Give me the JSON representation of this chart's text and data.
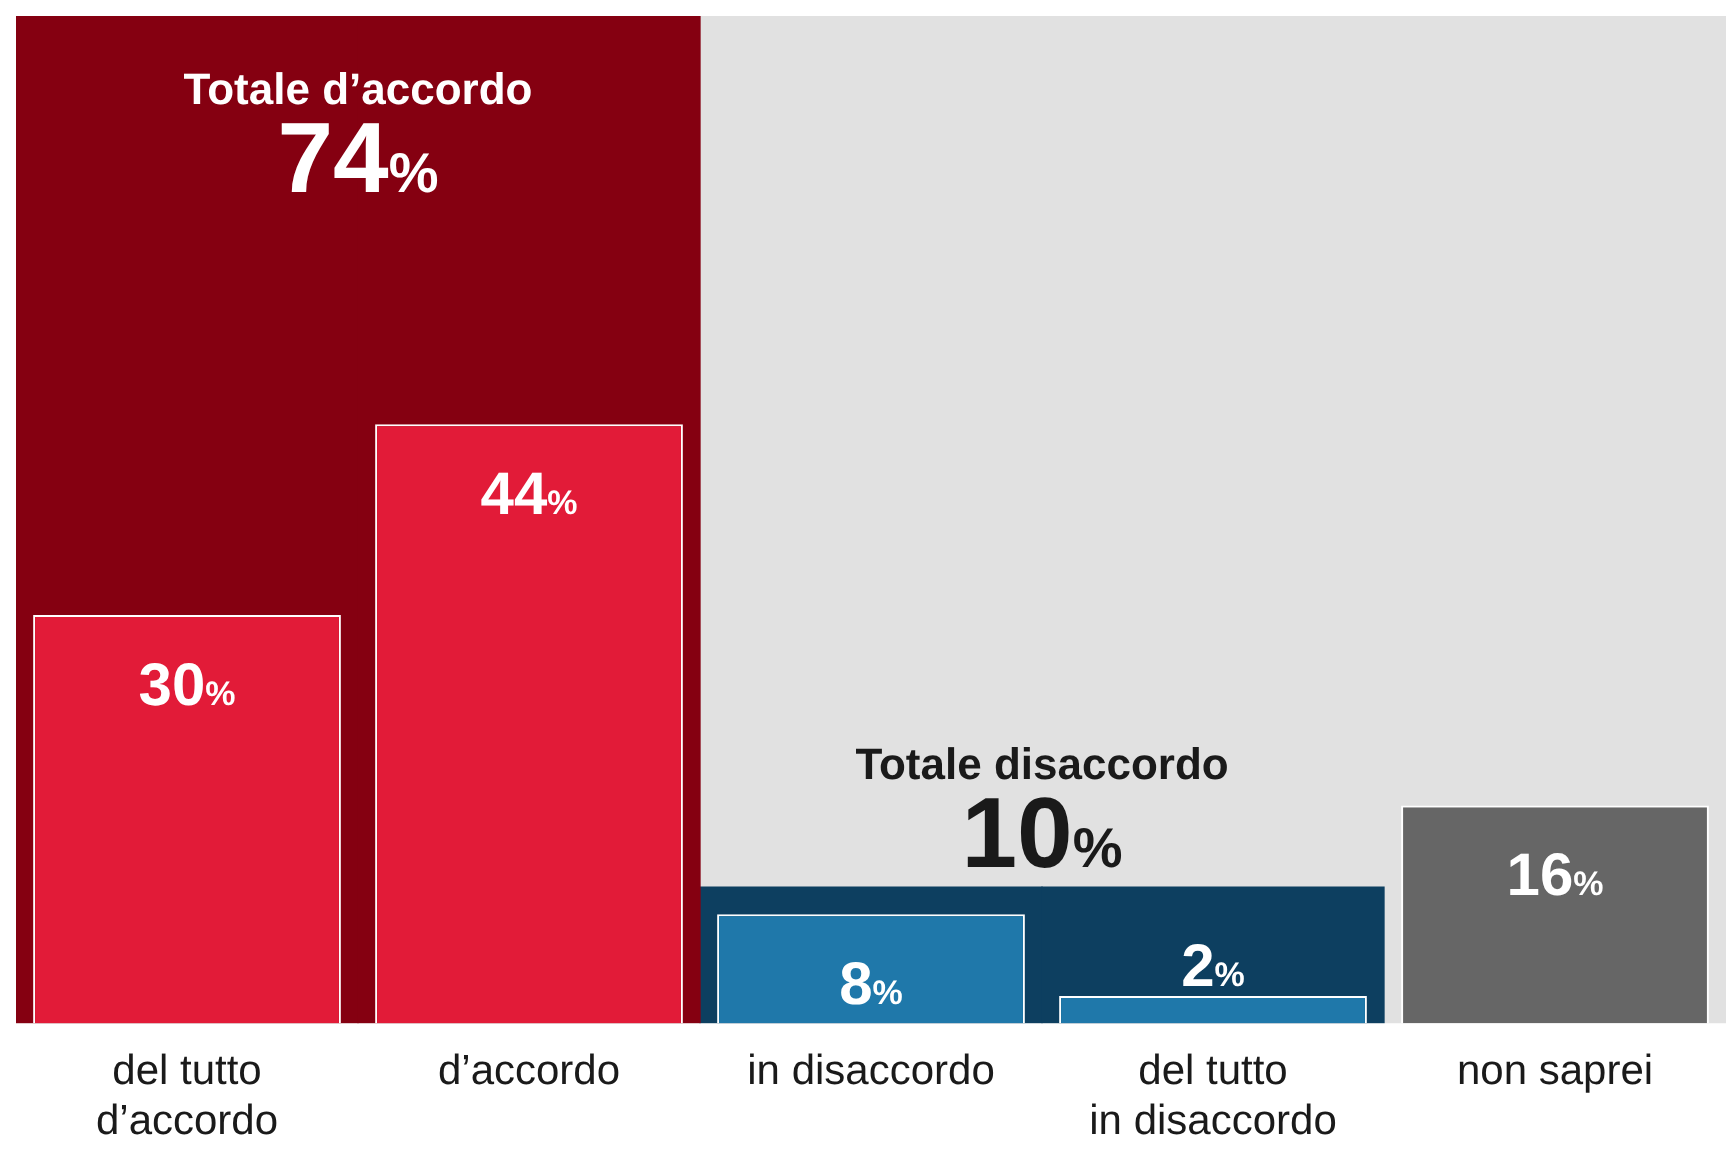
{
  "chart_data": {
    "type": "bar",
    "categories": [
      "del tutto\nd’accordo",
      "d’accordo",
      "in disaccordo",
      "del tutto\nin disaccordo",
      "non saprei"
    ],
    "ylim": [
      0,
      74
    ],
    "tick_labels": "x",
    "grid": false,
    "legend": false,
    "series": [
      {
        "colors": [
          "#e21b38",
          "#e21b38",
          "#1f78aa",
          "#1f78aa",
          "#666666"
        ],
        "values": [
          30,
          44,
          8,
          2,
          16
        ],
        "value_labels": [
          "30%",
          "44%",
          "8%",
          "2%",
          "16%"
        ]
      },
      {
        "name": "Totale d’accordo",
        "color": "#850011",
        "values": [
          74,
          74,
          null,
          null,
          null
        ],
        "value_labels": [
          "74%",
          null,
          null,
          null,
          null
        ]
      },
      {
        "name": "Totale disaccordo",
        "color": "#0d3f60",
        "values": [
          null,
          null,
          10,
          10,
          null
        ],
        "value_labels": [
          null,
          null,
          "10%",
          null,
          null
        ]
      }
    ]
  }
}
